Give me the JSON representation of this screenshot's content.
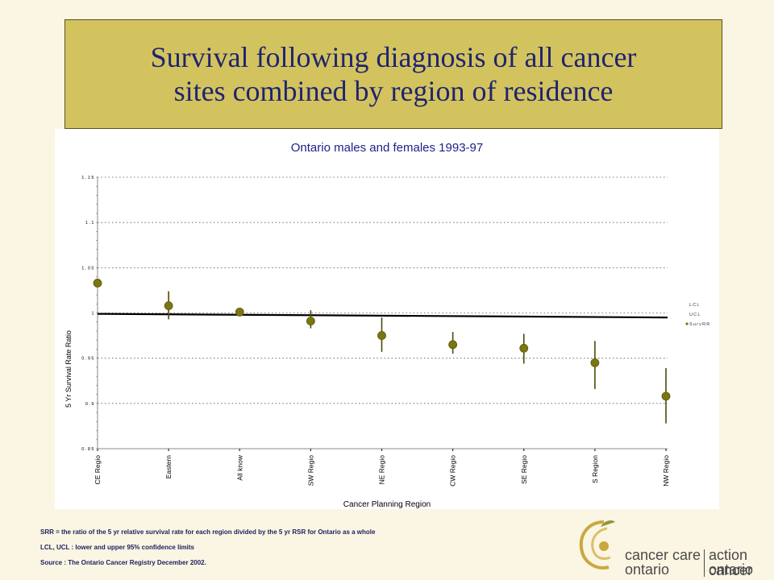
{
  "slide": {
    "title_lines": [
      "Survival following diagnosis of all cancer",
      "sites combined by region of residence"
    ]
  },
  "colors": {
    "title_bg": "#d3c35e",
    "title_text": "#1f2470",
    "chart_title": "#1c1f8a",
    "marker": "#7a7612",
    "errorbar": "#4a4a0a",
    "refline": "#000000",
    "logo_gold": "#c9a93c"
  },
  "chart_data": {
    "type": "scatter",
    "title": "Ontario males and females 1993-97",
    "xlabel": "Cancer Planning Region",
    "ylabel": "5 Yr Survival Rate Ratio",
    "ylim": [
      0.85,
      1.15
    ],
    "y_ticks": [
      0.85,
      0.9,
      0.95,
      1.0,
      1.05,
      1.1,
      1.15
    ],
    "y_tick_labels": [
      "0.85",
      "0.9",
      "0.95",
      "1",
      "1.05",
      "1.1",
      "1.15"
    ],
    "grid": true,
    "categories": [
      "CE Regio",
      "Eastern",
      "All know",
      "SW Regio",
      "NE Regio",
      "CW Regio",
      "SE Regio",
      "S Region",
      "NW Regio"
    ],
    "series": [
      {
        "name": "LCL",
        "values": [
          1.036,
          0.993,
          0.998,
          0.983,
          0.957,
          0.955,
          0.944,
          0.916,
          0.878
        ]
      },
      {
        "name": "UCL",
        "values": [
          1.036,
          1.024,
          1.005,
          1.003,
          0.995,
          0.979,
          0.977,
          0.969,
          0.939
        ]
      },
      {
        "name": "SurvRR",
        "values": [
          1.033,
          1.008,
          1.001,
          0.991,
          0.975,
          0.965,
          0.961,
          0.945,
          0.908
        ]
      }
    ],
    "reference_line": {
      "start": 0.999,
      "end": 0.995
    },
    "legend": [
      "LCL",
      "UCL",
      "SurvRR"
    ],
    "legend_position": "right"
  },
  "notes": [
    "SRR = the ratio of the 5 yr relative survival rate for each region divided by the 5 yr RSR for Ontario as a whole",
    "LCL, UCL : lower and upper 95% confidence limits",
    "Source : The Ontario Cancer Registry December 2002."
  ],
  "logo": {
    "left_line1": "cancer care",
    "left_line2": "ontario",
    "right_line1": "action cancer",
    "right_line2": "ontario"
  }
}
